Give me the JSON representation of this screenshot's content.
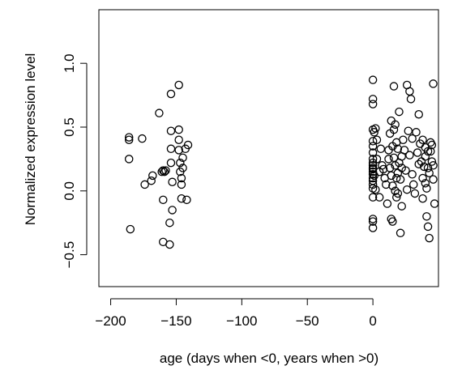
{
  "chart_data": {
    "type": "scatter",
    "title": "",
    "xlabel": "age (days when <0, years when >0)",
    "ylabel": "Normalized expression level",
    "xlim": [
      -209,
      50
    ],
    "ylim": [
      -0.75,
      1.42
    ],
    "x_ticks": [
      -200,
      -150,
      -100,
      -50,
      0
    ],
    "x_tick_labels": [
      "−200",
      "−150",
      "−100",
      "−50",
      "0"
    ],
    "y_ticks": [
      -0.5,
      0.0,
      0.5,
      1.0
    ],
    "y_tick_labels": [
      "−0.5",
      "0.0",
      "0.5",
      "1.0"
    ],
    "grid": false,
    "legend": "none",
    "marker": "open-circle",
    "series": [
      {
        "x": [
          -186,
          -186,
          -186,
          -185,
          -176,
          -174,
          -169,
          -168,
          -163,
          -161,
          -160,
          -160,
          -160,
          -159,
          -158,
          -155,
          -155,
          -154,
          -154,
          -154,
          -154,
          -153,
          -153,
          -148,
          -148,
          -148,
          -148,
          -147,
          -147,
          -146,
          -146,
          -146,
          -145,
          -145,
          -143,
          -142,
          -141
        ],
        "y": [
          0.42,
          0.4,
          0.25,
          -0.3,
          0.41,
          0.05,
          0.08,
          0.12,
          0.61,
          0.15,
          -0.4,
          0.16,
          -0.07,
          0.15,
          0.16,
          -0.42,
          -0.25,
          0.76,
          0.47,
          0.33,
          0.22,
          -0.15,
          0.07,
          0.83,
          0.48,
          0.4,
          0.32,
          0.22,
          0.15,
          0.1,
          0.05,
          -0.06,
          0.26,
          0.18,
          0.33,
          -0.07,
          0.36
        ]
      },
      {
        "x": [
          0,
          0,
          0,
          0,
          0,
          0,
          0,
          0,
          0,
          0,
          0,
          0,
          0,
          0,
          0,
          0,
          0,
          0,
          0,
          0,
          0,
          0,
          1,
          1,
          2,
          2,
          3,
          3,
          5,
          5,
          6,
          7,
          8,
          9,
          10,
          11,
          12,
          12,
          13,
          13,
          14,
          14,
          14,
          15,
          15,
          15,
          16,
          16,
          16,
          17,
          17,
          17,
          18,
          18,
          18,
          19,
          19,
          19,
          20,
          20,
          21,
          21,
          22,
          22,
          22,
          23,
          24,
          25,
          26,
          26,
          27,
          28,
          28,
          29,
          30,
          30,
          31,
          32,
          33,
          34,
          35,
          35,
          36,
          37,
          38,
          38,
          39,
          40,
          40,
          41,
          42,
          42,
          43,
          44,
          45,
          46
        ],
        "y": [
          0.87,
          0.72,
          0.68,
          0.48,
          0.39,
          0.3,
          0.25,
          0.2,
          0.18,
          0.15,
          0.13,
          0.1,
          0.08,
          0.05,
          0.02,
          -0.05,
          -0.22,
          -0.24,
          -0.29,
          0.22,
          0.17,
          0.35,
          0.46,
          0.12,
          0.01,
          0.49,
          0.4,
          0.25,
          -0.05,
          0.15,
          0.33,
          0.2,
          0.17,
          0.1,
          0.05,
          -0.1,
          0.32,
          0.25,
          0.45,
          0.18,
          0.55,
          0.12,
          -0.22,
          0.35,
          0.04,
          -0.24,
          0.82,
          0.48,
          0.26,
          0.52,
          0.2,
          0.0,
          0.38,
          0.1,
          -0.05,
          0.33,
          0.14,
          -0.02,
          0.62,
          0.22,
          0.09,
          -0.33,
          0.27,
          0.18,
          -0.12,
          0.4,
          0.32,
          0.16,
          0.83,
          0.01,
          0.47,
          0.78,
          0.28,
          0.72,
          0.41,
          0.13,
          0.05,
          -0.02,
          0.46,
          0.3,
          0.21,
          0.6,
          0.37,
          0.23,
          0.1,
          -0.06,
          0.19,
          0.34,
          0.06,
          -0.2,
          0.31,
          -0.28,
          0.14,
          0.38,
          0.23,
          0.09
        ]
      },
      {
        "x": [
          38,
          40,
          41,
          42,
          43,
          44,
          45,
          46,
          46,
          47
        ],
        "y": [
          0.4,
          0.27,
          0.02,
          0.18,
          -0.37,
          0.31,
          0.36,
          0.84,
          0.2,
          -0.1
        ]
      }
    ]
  }
}
